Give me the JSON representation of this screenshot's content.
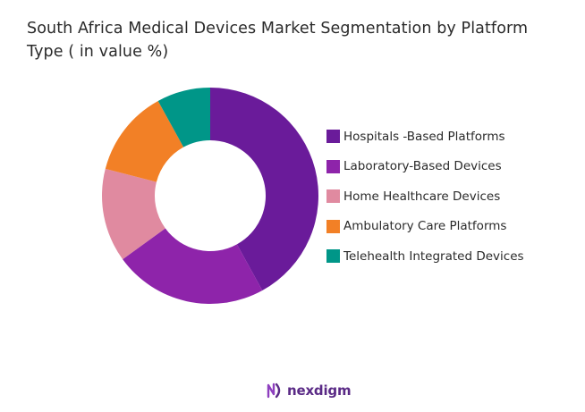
{
  "title_line1": "South Africa Medical Devices Market Segmentation by Platform",
  "title_line2": "Type ( in value %)",
  "chart_data": {
    "type": "pie",
    "donut": true,
    "title": "South Africa Medical Devices Market Segmentation by Platform Type ( in value %)",
    "categories": [
      "Hospitals -Based Platforms",
      "Laboratory-Based Devices",
      "Home Healthcare Devices",
      "Ambulatory Care Platforms",
      "Telehealth Integrated Devices"
    ],
    "values": [
      42,
      23,
      14,
      13,
      8
    ],
    "colors": [
      "#6a1b9a",
      "#8e24aa",
      "#e08aa0",
      "#f28026",
      "#009688"
    ],
    "legend_position": "right"
  },
  "logo": {
    "text": "nexdigm",
    "icon": "nexdigm-logo-icon"
  }
}
